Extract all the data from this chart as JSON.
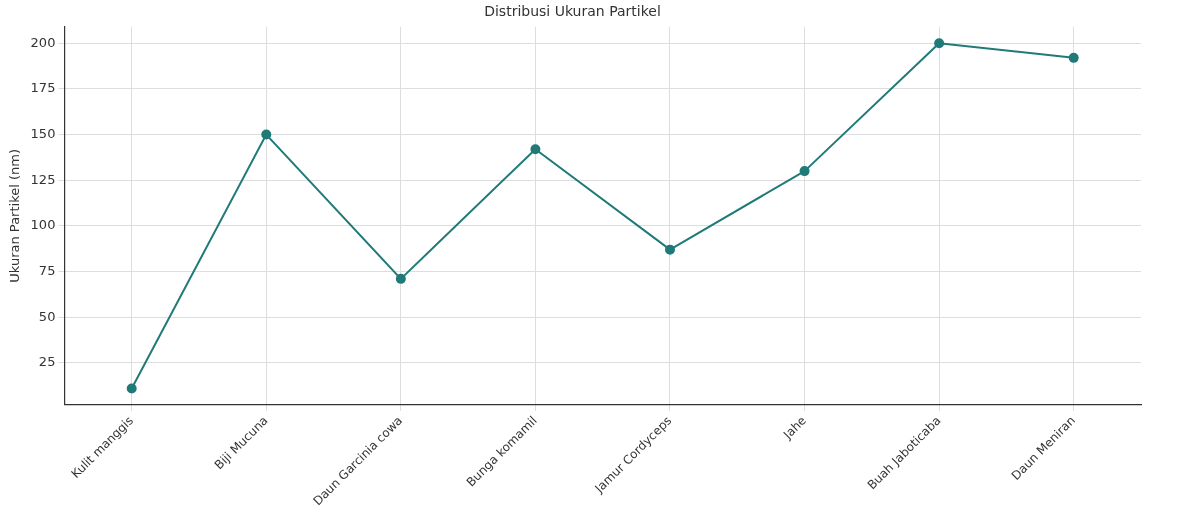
{
  "chart_data": {
    "type": "line",
    "title": "Distribusi Ukuran Partikel",
    "ylabel": "Ukuran Partikel (nm)",
    "categories": [
      "Kulit manggis",
      "Biji Mucuna",
      "Daun Garcinia cowa",
      "Bunga komamil",
      "Jamur Cordyceps",
      "Jahe",
      "Buah Jaboticaba",
      "Daun Meniran"
    ],
    "series": [
      {
        "color": "#1f7a78",
        "values": [
          11,
          150,
          71,
          142,
          87,
          130,
          200,
          192
        ]
      }
    ],
    "ylim": [
      2,
      209
    ],
    "yticks": [
      25,
      50,
      75,
      100,
      125,
      150,
      175,
      200
    ],
    "grid": true,
    "legend": false,
    "marker": "circle",
    "line_style": "solid"
  }
}
